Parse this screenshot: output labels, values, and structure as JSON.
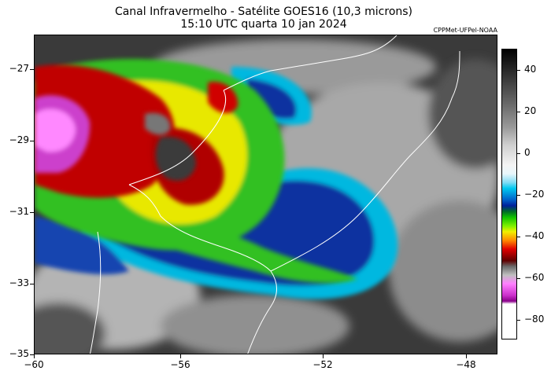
{
  "title": {
    "line1": "Canal Infravermelho - Satélite GOES16 (10,3 microns)",
    "line2": "15:10 UTC quarta 10 jan 2024"
  },
  "credit": "CPPMet-UFPel-NOAA",
  "axes": {
    "y_ticks": [
      "−27",
      "−29",
      "−31",
      "−33",
      "−35"
    ],
    "x_ticks": [
      "−60",
      "−56",
      "−52",
      "−48"
    ]
  },
  "colorbar": {
    "ticks": [
      "40",
      "20",
      "0",
      "−20",
      "−40",
      "−60",
      "−80"
    ]
  },
  "map_colors": {
    "cold_top": "#cc40cc",
    "red_core": "#c00000",
    "yellow": "#e8e800",
    "green": "#30c020",
    "blue": "#1030a0",
    "cyan": "#00b8e0",
    "cloud_gray": "#b0b0b0",
    "background": "#3a3a3a",
    "border_lines": "#ffffff"
  }
}
